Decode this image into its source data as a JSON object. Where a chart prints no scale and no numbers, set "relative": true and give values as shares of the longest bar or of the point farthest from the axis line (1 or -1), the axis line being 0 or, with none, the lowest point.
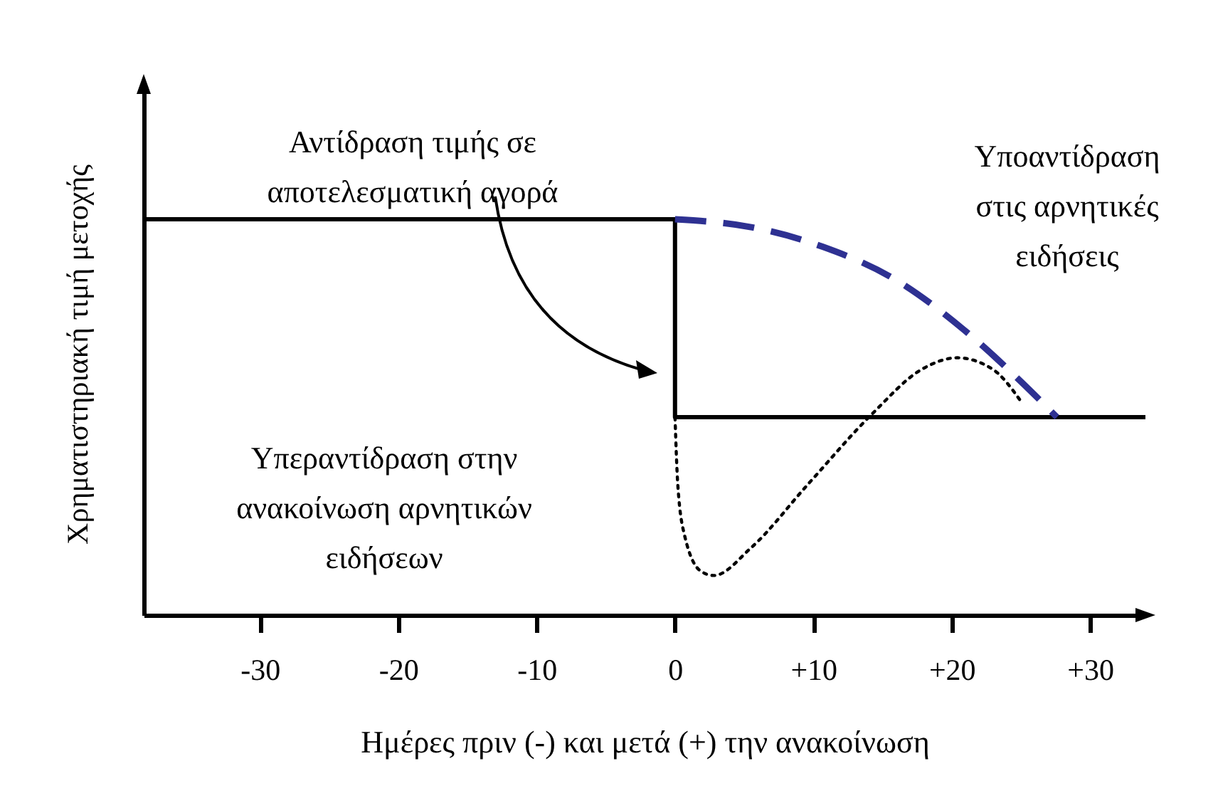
{
  "chart_data": {
    "type": "line",
    "relative": true,
    "xlabel": "Ημέρες πριν (-) και μετά (+)  την ανακοίνωση",
    "ylabel": "Χρηματιστηριακή τιμή μετοχής",
    "xlim": [
      -38.4,
      34
    ],
    "xticks": [
      -30,
      -20,
      -10,
      0,
      {
        "value": 10,
        "label": "+10"
      },
      {
        "value": 20,
        "label": "+20"
      },
      {
        "value": 30,
        "label": "+30"
      }
    ],
    "grid": false,
    "marker": "none",
    "series": [
      {
        "color": "#000000",
        "line_style": "solid",
        "x": [
          -38.4,
          0,
          0,
          34
        ],
        "values": [
          1,
          1,
          0.5,
          0.5
        ]
      },
      {
        "color": "#2e3192",
        "line_style": "dashed",
        "x": [
          0,
          5.5,
          10.7,
          15.8,
          20.9,
          25,
          27.6
        ],
        "values": [
          1,
          0.98,
          0.93,
          0.85,
          0.72,
          0.59,
          0.5
        ]
      },
      {
        "color": "#000000",
        "line_style": "dotted",
        "x": [
          0,
          0.2,
          0.7,
          1.9,
          2.8,
          5.5,
          9.6,
          14.3,
          17.8,
          20.4,
          23,
          25
        ],
        "values": [
          0.5,
          0.33,
          0.2,
          0.11,
          0.1,
          0.17,
          0.33,
          0.51,
          0.62,
          0.65,
          0.62,
          0.54
        ]
      }
    ],
    "annotations": [
      "Αντίδραση τιμής σε\nαποτελεσματική αγορά",
      "Υποαντίδραση\nστις αρνητικές\nειδήσεις",
      "Υπεραντίδραση στην\nανακοίνωση αρνητικών\nειδήσεων"
    ]
  }
}
